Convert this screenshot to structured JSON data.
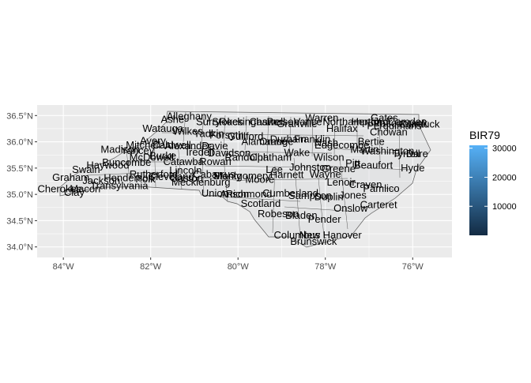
{
  "colors": {
    "panel": "#ebebeb",
    "grid": "#ffffff",
    "border": "#595959",
    "fill_low": "#132b43",
    "fill_high": "#56b1f7"
  },
  "chart_data": {
    "type": "choropleth",
    "xlim": [
      -84.6,
      -75.1
    ],
    "ylim": [
      33.8,
      36.7
    ],
    "x_ticks": [
      {
        "value": -84,
        "label": "84°W"
      },
      {
        "value": -82,
        "label": "82°W"
      },
      {
        "value": -80,
        "label": "80°W"
      },
      {
        "value": -78,
        "label": "78°W"
      },
      {
        "value": -76,
        "label": "76°W"
      }
    ],
    "y_ticks": [
      {
        "value": 36.5,
        "label": "36.5°N"
      },
      {
        "value": 36.0,
        "label": "36.0°N"
      },
      {
        "value": 35.5,
        "label": "35.5°N"
      },
      {
        "value": 35.0,
        "label": "35.0°N"
      },
      {
        "value": 34.5,
        "label": "34.5°N"
      },
      {
        "value": 34.0,
        "label": "34.0°N"
      }
    ],
    "legend": {
      "title": "BIR79",
      "position": "right",
      "range": [
        0,
        31000
      ],
      "ticks": [
        {
          "value": 10000,
          "label": "10000"
        },
        {
          "value": 20000,
          "label": "20000"
        },
        {
          "value": 30000,
          "label": "30000"
        }
      ]
    },
    "counties": [
      {
        "name": "Alleghany",
        "lon": -81.12,
        "lat": 36.48
      },
      {
        "name": "Ashe",
        "lon": -81.5,
        "lat": 36.42
      },
      {
        "name": "Surry",
        "lon": -80.68,
        "lat": 36.38
      },
      {
        "name": "Stokes",
        "lon": -80.24,
        "lat": 36.38
      },
      {
        "name": "Rockingham",
        "lon": -79.78,
        "lat": 36.38
      },
      {
        "name": "Caswell",
        "lon": -79.33,
        "lat": 36.38
      },
      {
        "name": "Person",
        "lon": -78.97,
        "lat": 36.38
      },
      {
        "name": "Granville",
        "lon": -78.65,
        "lat": 36.34
      },
      {
        "name": "Vance",
        "lon": -78.4,
        "lat": 36.38
      },
      {
        "name": "Warren",
        "lon": -78.08,
        "lat": 36.45
      },
      {
        "name": "Northampton",
        "lon": -77.38,
        "lat": 36.38
      },
      {
        "name": "Hertford",
        "lon": -76.98,
        "lat": 36.38
      },
      {
        "name": "Gates",
        "lon": -76.65,
        "lat": 36.45
      },
      {
        "name": "Camden",
        "lon": -76.12,
        "lat": 36.38
      },
      {
        "name": "Currituck",
        "lon": -75.85,
        "lat": 36.33
      },
      {
        "name": "Pasquotank",
        "lon": -76.28,
        "lat": 36.35
      },
      {
        "name": "Perquimans",
        "lon": -76.42,
        "lat": 36.3
      },
      {
        "name": "Halifax",
        "lon": -77.62,
        "lat": 36.25
      },
      {
        "name": "Chowan",
        "lon": -76.55,
        "lat": 36.18
      },
      {
        "name": "Watauga",
        "lon": -81.72,
        "lat": 36.25
      },
      {
        "name": "Wilkes",
        "lon": -81.15,
        "lat": 36.2
      },
      {
        "name": "Yadkin",
        "lon": -80.67,
        "lat": 36.15
      },
      {
        "name": "Forsyth",
        "lon": -80.26,
        "lat": 36.12
      },
      {
        "name": "Guilford",
        "lon": -79.83,
        "lat": 36.1
      },
      {
        "name": "Alamance",
        "lon": -79.4,
        "lat": 36.0
      },
      {
        "name": "Orange",
        "lon": -79.12,
        "lat": 36.0
      },
      {
        "name": "Durham",
        "lon": -78.85,
        "lat": 36.05
      },
      {
        "name": "Franklin",
        "lon": -78.3,
        "lat": 36.05
      },
      {
        "name": "Nash",
        "lon": -77.98,
        "lat": 35.98
      },
      {
        "name": "Edgecombe",
        "lon": -77.62,
        "lat": 35.93
      },
      {
        "name": "Martin",
        "lon": -77.1,
        "lat": 35.85
      },
      {
        "name": "Bertie",
        "lon": -76.95,
        "lat": 36.0
      },
      {
        "name": "Washington",
        "lon": -76.58,
        "lat": 35.82
      },
      {
        "name": "Tyrrell",
        "lon": -76.15,
        "lat": 35.77
      },
      {
        "name": "Dare",
        "lon": -75.9,
        "lat": 35.77
      },
      {
        "name": "Avery",
        "lon": -81.95,
        "lat": 36.02
      },
      {
        "name": "Mitchell",
        "lon": -82.17,
        "lat": 35.93
      },
      {
        "name": "Caldwell",
        "lon": -81.52,
        "lat": 35.93
      },
      {
        "name": "Alexander",
        "lon": -81.15,
        "lat": 35.92
      },
      {
        "name": "Davie",
        "lon": -80.53,
        "lat": 35.92
      },
      {
        "name": "Yancey",
        "lon": -82.3,
        "lat": 35.83
      },
      {
        "name": "Madison",
        "lon": -82.7,
        "lat": 35.85
      },
      {
        "name": "McDowell",
        "lon": -81.98,
        "lat": 35.7
      },
      {
        "name": "Burke",
        "lon": -81.72,
        "lat": 35.73
      },
      {
        "name": "Iredell",
        "lon": -80.87,
        "lat": 35.8
      },
      {
        "name": "Davidson",
        "lon": -80.2,
        "lat": 35.78
      },
      {
        "name": "Randolph",
        "lon": -79.8,
        "lat": 35.7
      },
      {
        "name": "Chatham",
        "lon": -79.25,
        "lat": 35.7
      },
      {
        "name": "Wake",
        "lon": -78.65,
        "lat": 35.79
      },
      {
        "name": "Wilson",
        "lon": -77.92,
        "lat": 35.7
      },
      {
        "name": "Pitt",
        "lon": -77.37,
        "lat": 35.59
      },
      {
        "name": "Beaufort",
        "lon": -76.9,
        "lat": 35.55
      },
      {
        "name": "Hyde",
        "lon": -76.0,
        "lat": 35.5
      },
      {
        "name": "Buncombe",
        "lon": -82.55,
        "lat": 35.6
      },
      {
        "name": "Haywood",
        "lon": -82.98,
        "lat": 35.55
      },
      {
        "name": "Swain",
        "lon": -83.48,
        "lat": 35.47
      },
      {
        "name": "Catawba",
        "lon": -81.25,
        "lat": 35.62
      },
      {
        "name": "Rowan",
        "lon": -80.52,
        "lat": 35.62
      },
      {
        "name": "Lincoln",
        "lon": -81.2,
        "lat": 35.45
      },
      {
        "name": "Johnston",
        "lon": -78.35,
        "lat": 35.51
      },
      {
        "name": "Greene",
        "lon": -77.7,
        "lat": 35.48
      },
      {
        "name": "Lee",
        "lon": -79.17,
        "lat": 35.47
      },
      {
        "name": "Graham",
        "lon": -83.83,
        "lat": 35.32
      },
      {
        "name": "Jackson",
        "lon": -83.13,
        "lat": 35.26
      },
      {
        "name": "Henderson",
        "lon": -82.5,
        "lat": 35.31
      },
      {
        "name": "Polk",
        "lon": -82.12,
        "lat": 35.29
      },
      {
        "name": "Rutherford",
        "lon": -81.93,
        "lat": 35.38
      },
      {
        "name": "Cleveland",
        "lon": -81.53,
        "lat": 35.33
      },
      {
        "name": "Gaston",
        "lon": -81.18,
        "lat": 35.3
      },
      {
        "name": "Cabarrus",
        "lon": -80.55,
        "lat": 35.38
      },
      {
        "name": "Stanly",
        "lon": -80.25,
        "lat": 35.35
      },
      {
        "name": "Montgomery",
        "lon": -79.9,
        "lat": 35.35
      },
      {
        "name": "Moore",
        "lon": -79.5,
        "lat": 35.28
      },
      {
        "name": "Harnett",
        "lon": -78.88,
        "lat": 35.37
      },
      {
        "name": "Wayne",
        "lon": -78.0,
        "lat": 35.38
      },
      {
        "name": "Lenoir",
        "lon": -77.64,
        "lat": 35.23
      },
      {
        "name": "Craven",
        "lon": -77.08,
        "lat": 35.18
      },
      {
        "name": "Pamlico",
        "lon": -76.72,
        "lat": 35.11
      },
      {
        "name": "Cherokee",
        "lon": -84.08,
        "lat": 35.1
      },
      {
        "name": "Macon",
        "lon": -83.5,
        "lat": 35.1
      },
      {
        "name": "Transylvania",
        "lon": -82.72,
        "lat": 35.16
      },
      {
        "name": "Clay",
        "lon": -83.75,
        "lat": 35.03
      },
      {
        "name": "Mecklenburg",
        "lon": -80.85,
        "lat": 35.23
      },
      {
        "name": "Union",
        "lon": -80.53,
        "lat": 35.02
      },
      {
        "name": "Anson",
        "lon": -80.08,
        "lat": 35.0
      },
      {
        "name": "Richmond",
        "lon": -79.75,
        "lat": 35.0
      },
      {
        "name": "Cumberland",
        "lon": -78.8,
        "lat": 35.02
      },
      {
        "name": "Sampson",
        "lon": -78.35,
        "lat": 34.97
      },
      {
        "name": "Duplin",
        "lon": -77.92,
        "lat": 34.95
      },
      {
        "name": "Jones",
        "lon": -77.37,
        "lat": 34.98
      },
      {
        "name": "Scotland",
        "lon": -79.48,
        "lat": 34.82
      },
      {
        "name": "Onslow",
        "lon": -77.42,
        "lat": 34.73
      },
      {
        "name": "Carteret",
        "lon": -76.78,
        "lat": 34.8
      },
      {
        "name": "Robeson",
        "lon": -79.08,
        "lat": 34.63
      },
      {
        "name": "Bladen",
        "lon": -78.55,
        "lat": 34.6
      },
      {
        "name": "Pender",
        "lon": -78.02,
        "lat": 34.52
      },
      {
        "name": "Columbus",
        "lon": -78.65,
        "lat": 34.22
      },
      {
        "name": "New Hanover",
        "lon": -77.88,
        "lat": 34.22
      },
      {
        "name": "Brunswick",
        "lon": -78.27,
        "lat": 34.1
      }
    ]
  }
}
